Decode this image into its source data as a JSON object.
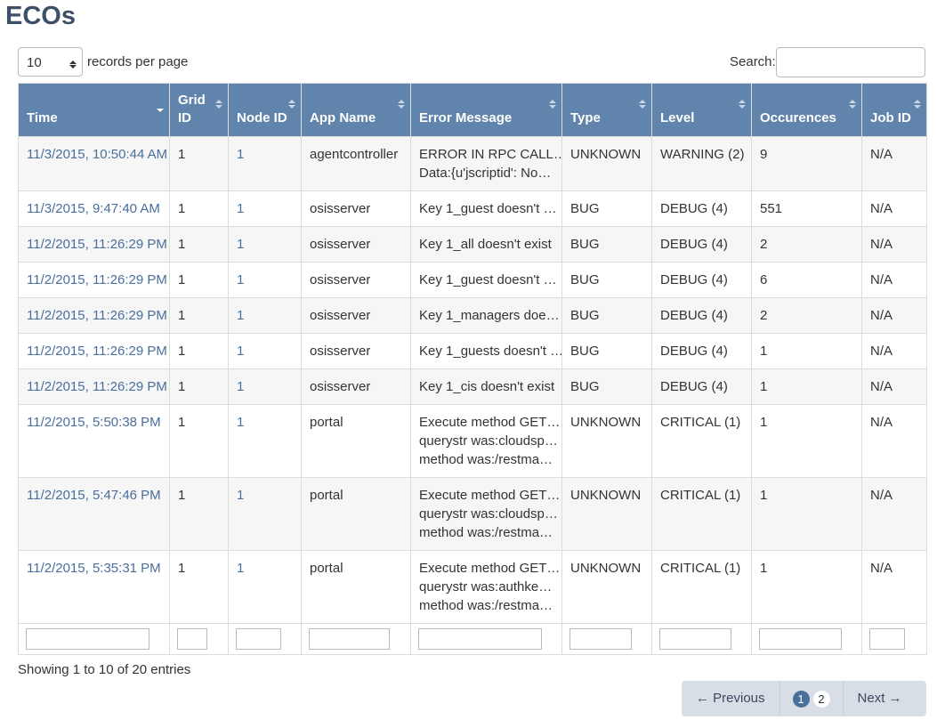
{
  "header": {
    "title": "ECOs"
  },
  "controls": {
    "page_length": "10",
    "page_length_label": "records per page",
    "search_label": "Search:"
  },
  "table": {
    "columns": [
      "Time",
      "Grid ID",
      "Node ID",
      "App Name",
      "Error Message",
      "Type",
      "Level",
      "Occurences",
      "Job ID"
    ],
    "rows": [
      [
        "11/3/2015, 10:50:44 AM",
        "1",
        "1",
        "agentcontroller",
        [
          "ERROR IN RPC CALL…",
          "Data:{u'jscriptid': No…"
        ],
        "UNKNOWN",
        "WARNING (2)",
        "9",
        "N/A"
      ],
      [
        "11/3/2015, 9:47:40 AM",
        "1",
        "1",
        "osisserver",
        [
          "Key 1_guest doesn't …"
        ],
        "BUG",
        "DEBUG (4)",
        "551",
        "N/A"
      ],
      [
        "11/2/2015, 11:26:29 PM",
        "1",
        "1",
        "osisserver",
        [
          "Key 1_all doesn't exist"
        ],
        "BUG",
        "DEBUG (4)",
        "2",
        "N/A"
      ],
      [
        "11/2/2015, 11:26:29 PM",
        "1",
        "1",
        "osisserver",
        [
          "Key 1_guest doesn't …"
        ],
        "BUG",
        "DEBUG (4)",
        "6",
        "N/A"
      ],
      [
        "11/2/2015, 11:26:29 PM",
        "1",
        "1",
        "osisserver",
        [
          "Key 1_managers doe…"
        ],
        "BUG",
        "DEBUG (4)",
        "2",
        "N/A"
      ],
      [
        "11/2/2015, 11:26:29 PM",
        "1",
        "1",
        "osisserver",
        [
          "Key 1_guests doesn't …"
        ],
        "BUG",
        "DEBUG (4)",
        "1",
        "N/A"
      ],
      [
        "11/2/2015, 11:26:29 PM",
        "1",
        "1",
        "osisserver",
        [
          "Key 1_cis doesn't exist"
        ],
        "BUG",
        "DEBUG (4)",
        "1",
        "N/A"
      ],
      [
        "11/2/2015, 5:50:38 PM",
        "1",
        "1",
        "portal",
        [
          "Execute method GET…",
          "querystr was:cloudsp…",
          "method was:/restma…"
        ],
        "UNKNOWN",
        "CRITICAL (1)",
        "1",
        "N/A"
      ],
      [
        "11/2/2015, 5:47:46 PM",
        "1",
        "1",
        "portal",
        [
          "Execute method GET…",
          "querystr was:cloudsp…",
          "method was:/restma…"
        ],
        "UNKNOWN",
        "CRITICAL (1)",
        "1",
        "N/A"
      ],
      [
        "11/2/2015, 5:35:31 PM",
        "1",
        "1",
        "portal",
        [
          "Execute method GET…",
          "querystr was:authke…",
          "method was:/restma…"
        ],
        "UNKNOWN",
        "CRITICAL (1)",
        "1",
        "N/A"
      ]
    ]
  },
  "footer": {
    "info": "Showing 1 to 10 of 20 entries",
    "pagination": {
      "previous": "← Previous",
      "pages": [
        "1",
        "2"
      ],
      "next": "Next →"
    }
  }
}
